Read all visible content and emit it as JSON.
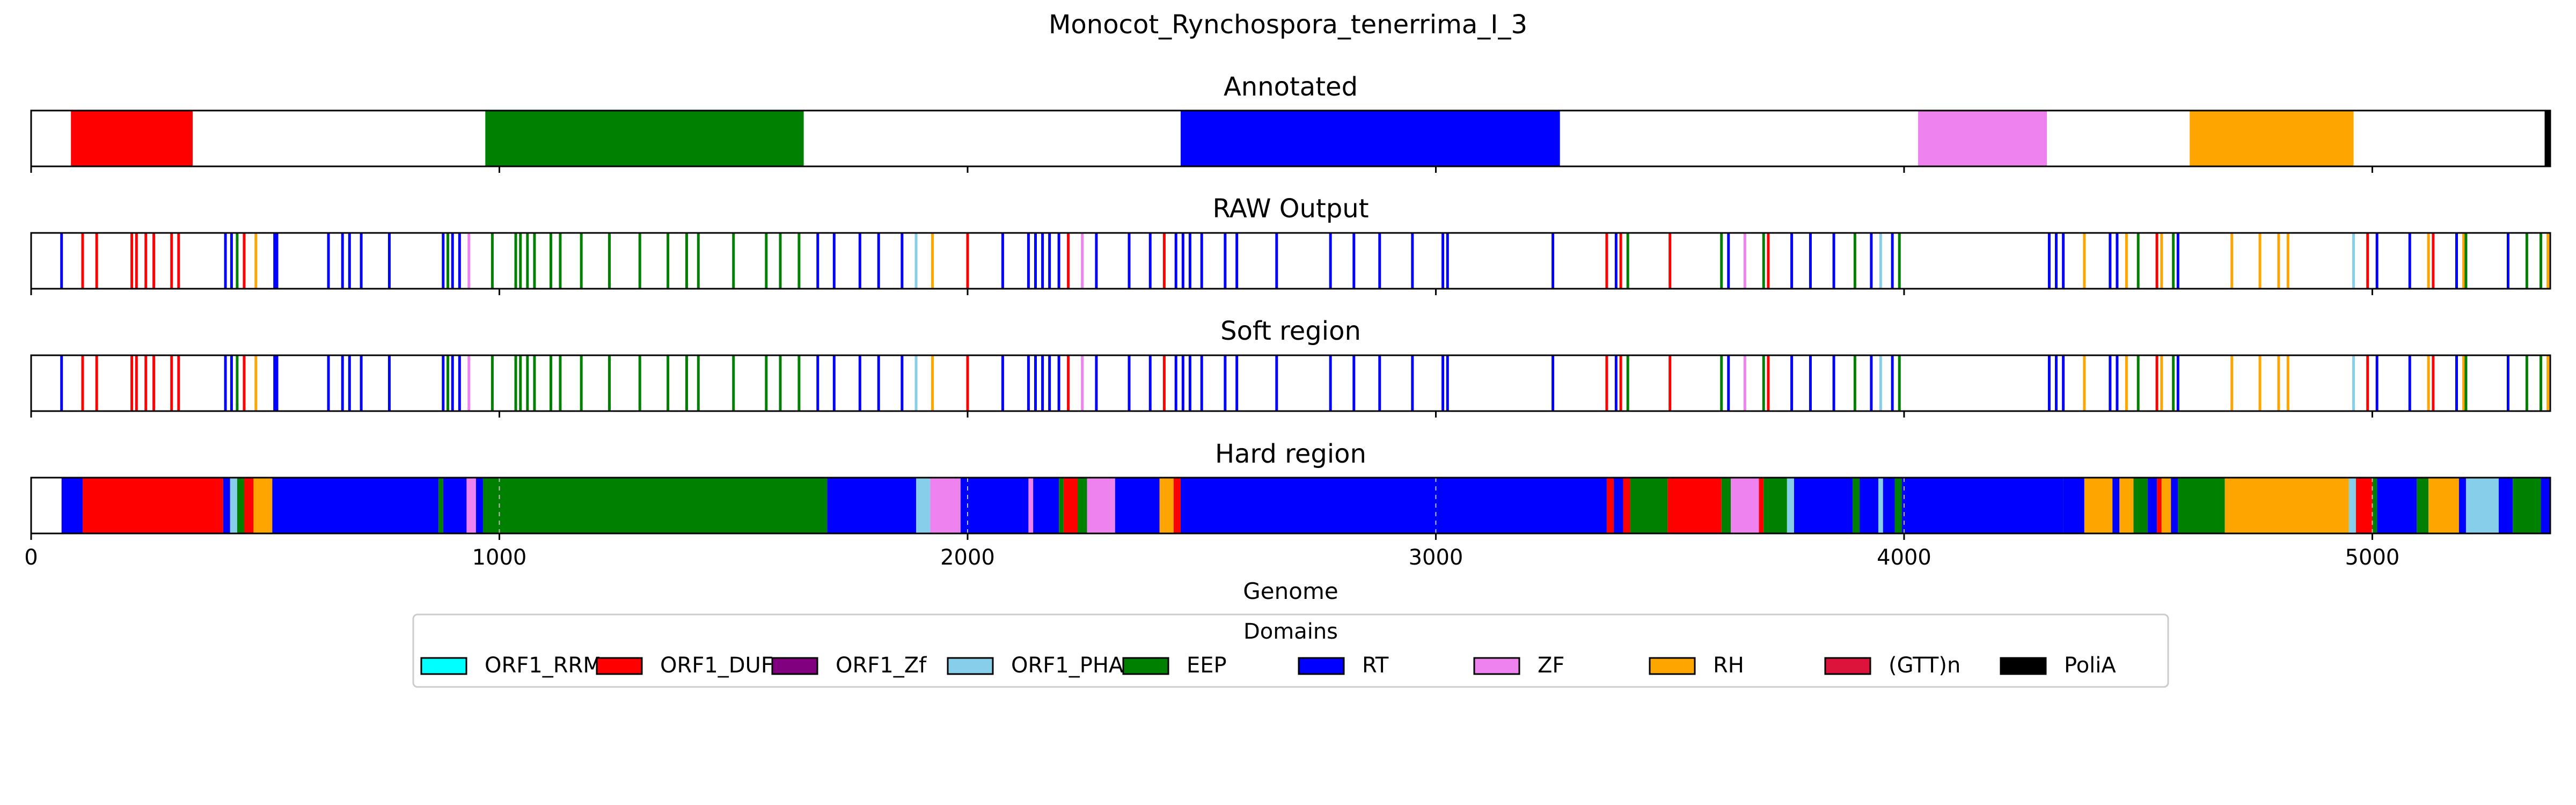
{
  "chart_data": {
    "type": "genome-track",
    "title": "Monocot_Rynchospora_tenerrima_I_3",
    "xlabel": "Genome",
    "xlim": [
      0,
      5380
    ],
    "xticks": [
      0,
      1000,
      2000,
      3000,
      4000,
      5000
    ],
    "xtick_labels": [
      "0",
      "1000",
      "2000",
      "3000",
      "4000",
      "5000"
    ],
    "colors": {
      "ORF1_RRM": "#00ffff",
      "ORF1_DUF": "#ff0000",
      "ORF1_Zf": "#800080",
      "ORF1_PHA": "#87ceeb",
      "EEP": "#008000",
      "RT": "#0000ff",
      "ZF": "#ee82ee",
      "RH": "#ffa500",
      "(GTT)n": "#dc143c",
      "PoliA": "#000000"
    },
    "legend": {
      "title": "Domains",
      "placement": "bottom-center",
      "entries": [
        "ORF1_RRM",
        "ORF1_DUF",
        "ORF1_Zf",
        "ORF1_PHA",
        "EEP",
        "RT",
        "ZF",
        "RH",
        "(GTT)n",
        "PoliA"
      ]
    },
    "panels": [
      {
        "name": "annotated",
        "title": "Annotated",
        "segments": [
          {
            "start": 85,
            "end": 345,
            "domain": "ORF1_DUF"
          },
          {
            "start": 970,
            "end": 1650,
            "domain": "EEP"
          },
          {
            "start": 2455,
            "end": 3265,
            "domain": "RT"
          },
          {
            "start": 4030,
            "end": 4305,
            "domain": "ZF"
          },
          {
            "start": 4610,
            "end": 4960,
            "domain": "RH"
          },
          {
            "start": 5368,
            "end": 5380,
            "domain": "PoliA"
          }
        ]
      },
      {
        "name": "raw-output",
        "title": "RAW Output",
        "lines": [
          {
            "pos": 65,
            "domain": "RT"
          },
          {
            "pos": 110,
            "domain": "ORF1_DUF"
          },
          {
            "pos": 140,
            "domain": "ORF1_DUF"
          },
          {
            "pos": 215,
            "domain": "ORF1_DUF"
          },
          {
            "pos": 225,
            "domain": "ORF1_DUF"
          },
          {
            "pos": 245,
            "domain": "ORF1_DUF"
          },
          {
            "pos": 262,
            "domain": "ORF1_DUF"
          },
          {
            "pos": 300,
            "domain": "ORF1_DUF"
          },
          {
            "pos": 315,
            "domain": "ORF1_DUF"
          },
          {
            "pos": 415,
            "domain": "RT"
          },
          {
            "pos": 428,
            "domain": "RT"
          },
          {
            "pos": 440,
            "domain": "EEP"
          },
          {
            "pos": 455,
            "domain": "ORF1_DUF"
          },
          {
            "pos": 480,
            "domain": "RH"
          },
          {
            "pos": 520,
            "domain": "RT"
          },
          {
            "pos": 525,
            "domain": "RT"
          },
          {
            "pos": 635,
            "domain": "RT"
          },
          {
            "pos": 665,
            "domain": "RT"
          },
          {
            "pos": 680,
            "domain": "RT"
          },
          {
            "pos": 705,
            "domain": "RT"
          },
          {
            "pos": 765,
            "domain": "RT"
          },
          {
            "pos": 880,
            "domain": "RT"
          },
          {
            "pos": 890,
            "domain": "EEP"
          },
          {
            "pos": 900,
            "domain": "RT"
          },
          {
            "pos": 915,
            "domain": "RT"
          },
          {
            "pos": 935,
            "domain": "ZF"
          },
          {
            "pos": 985,
            "domain": "EEP"
          },
          {
            "pos": 1035,
            "domain": "EEP"
          },
          {
            "pos": 1045,
            "domain": "EEP"
          },
          {
            "pos": 1060,
            "domain": "EEP"
          },
          {
            "pos": 1075,
            "domain": "EEP"
          },
          {
            "pos": 1110,
            "domain": "EEP"
          },
          {
            "pos": 1130,
            "domain": "EEP"
          },
          {
            "pos": 1175,
            "domain": "EEP"
          },
          {
            "pos": 1235,
            "domain": "EEP"
          },
          {
            "pos": 1300,
            "domain": "EEP"
          },
          {
            "pos": 1360,
            "domain": "EEP"
          },
          {
            "pos": 1400,
            "domain": "EEP"
          },
          {
            "pos": 1425,
            "domain": "EEP"
          },
          {
            "pos": 1500,
            "domain": "EEP"
          },
          {
            "pos": 1570,
            "domain": "EEP"
          },
          {
            "pos": 1600,
            "domain": "EEP"
          },
          {
            "pos": 1640,
            "domain": "EEP"
          },
          {
            "pos": 1680,
            "domain": "RT"
          },
          {
            "pos": 1715,
            "domain": "RT"
          },
          {
            "pos": 1770,
            "domain": "RT"
          },
          {
            "pos": 1810,
            "domain": "RT"
          },
          {
            "pos": 1860,
            "domain": "RT"
          },
          {
            "pos": 1890,
            "domain": "ORF1_PHA"
          },
          {
            "pos": 1925,
            "domain": "RH"
          },
          {
            "pos": 2000,
            "domain": "ORF1_DUF"
          },
          {
            "pos": 2075,
            "domain": "RT"
          },
          {
            "pos": 2130,
            "domain": "RT"
          },
          {
            "pos": 2145,
            "domain": "RT"
          },
          {
            "pos": 2160,
            "domain": "RT"
          },
          {
            "pos": 2175,
            "domain": "RT"
          },
          {
            "pos": 2195,
            "domain": "RT"
          },
          {
            "pos": 2215,
            "domain": "ORF1_DUF"
          },
          {
            "pos": 2245,
            "domain": "ZF"
          },
          {
            "pos": 2275,
            "domain": "RT"
          },
          {
            "pos": 2345,
            "domain": "RT"
          },
          {
            "pos": 2390,
            "domain": "RT"
          },
          {
            "pos": 2420,
            "domain": "ORF1_DUF"
          },
          {
            "pos": 2445,
            "domain": "RT"
          },
          {
            "pos": 2460,
            "domain": "RT"
          },
          {
            "pos": 2475,
            "domain": "RT"
          },
          {
            "pos": 2500,
            "domain": "RT"
          },
          {
            "pos": 2550,
            "domain": "RT"
          },
          {
            "pos": 2575,
            "domain": "RT"
          },
          {
            "pos": 2660,
            "domain": "RT"
          },
          {
            "pos": 2775,
            "domain": "RT"
          },
          {
            "pos": 2825,
            "domain": "RT"
          },
          {
            "pos": 2880,
            "domain": "RT"
          },
          {
            "pos": 2950,
            "domain": "RT"
          },
          {
            "pos": 3015,
            "domain": "RT"
          },
          {
            "pos": 3025,
            "domain": "RT"
          },
          {
            "pos": 3250,
            "domain": "RT"
          },
          {
            "pos": 3365,
            "domain": "ORF1_DUF"
          },
          {
            "pos": 3385,
            "domain": "RT"
          },
          {
            "pos": 3395,
            "domain": "ORF1_DUF"
          },
          {
            "pos": 3410,
            "domain": "EEP"
          },
          {
            "pos": 3500,
            "domain": "ORF1_DUF"
          },
          {
            "pos": 3610,
            "domain": "EEP"
          },
          {
            "pos": 3625,
            "domain": "RT"
          },
          {
            "pos": 3660,
            "domain": "ZF"
          },
          {
            "pos": 3700,
            "domain": "EEP"
          },
          {
            "pos": 3710,
            "domain": "ORF1_DUF"
          },
          {
            "pos": 3760,
            "domain": "RT"
          },
          {
            "pos": 3800,
            "domain": "RT"
          },
          {
            "pos": 3850,
            "domain": "RT"
          },
          {
            "pos": 3895,
            "domain": "EEP"
          },
          {
            "pos": 3930,
            "domain": "RT"
          },
          {
            "pos": 3950,
            "domain": "ORF1_PHA"
          },
          {
            "pos": 3975,
            "domain": "RT"
          },
          {
            "pos": 3990,
            "domain": "EEP"
          },
          {
            "pos": 4310,
            "domain": "RT"
          },
          {
            "pos": 4325,
            "domain": "RT"
          },
          {
            "pos": 4340,
            "domain": "RT"
          },
          {
            "pos": 4385,
            "domain": "RH"
          },
          {
            "pos": 4440,
            "domain": "RT"
          },
          {
            "pos": 4455,
            "domain": "RT"
          },
          {
            "pos": 4475,
            "domain": "RH"
          },
          {
            "pos": 4500,
            "domain": "EEP"
          },
          {
            "pos": 4540,
            "domain": "ORF1_DUF"
          },
          {
            "pos": 4550,
            "domain": "RH"
          },
          {
            "pos": 4575,
            "domain": "EEP"
          },
          {
            "pos": 4585,
            "domain": "RT"
          },
          {
            "pos": 4700,
            "domain": "RH"
          },
          {
            "pos": 4760,
            "domain": "RH"
          },
          {
            "pos": 4800,
            "domain": "RH"
          },
          {
            "pos": 4820,
            "domain": "RH"
          },
          {
            "pos": 4960,
            "domain": "ORF1_PHA"
          },
          {
            "pos": 4990,
            "domain": "ORF1_DUF"
          },
          {
            "pos": 5010,
            "domain": "RT"
          },
          {
            "pos": 5080,
            "domain": "RT"
          },
          {
            "pos": 5120,
            "domain": "RH"
          },
          {
            "pos": 5130,
            "domain": "ORF1_DUF"
          },
          {
            "pos": 5180,
            "domain": "RT"
          },
          {
            "pos": 5195,
            "domain": "RH"
          },
          {
            "pos": 5200,
            "domain": "EEP"
          },
          {
            "pos": 5290,
            "domain": "RT"
          },
          {
            "pos": 5330,
            "domain": "EEP"
          },
          {
            "pos": 5360,
            "domain": "EEP"
          },
          {
            "pos": 5375,
            "domain": "RH"
          }
        ]
      },
      {
        "name": "soft-region",
        "title": "Soft region",
        "same_as": "raw-output"
      },
      {
        "name": "hard-region",
        "title": "Hard region",
        "segments": [
          {
            "start": 65,
            "end": 110,
            "domain": "RT"
          },
          {
            "start": 110,
            "end": 410,
            "domain": "ORF1_DUF"
          },
          {
            "start": 410,
            "end": 425,
            "domain": "RT"
          },
          {
            "start": 425,
            "end": 440,
            "domain": "ORF1_PHA"
          },
          {
            "start": 440,
            "end": 455,
            "domain": "EEP"
          },
          {
            "start": 455,
            "end": 475,
            "domain": "ORF1_DUF"
          },
          {
            "start": 475,
            "end": 515,
            "domain": "RH"
          },
          {
            "start": 515,
            "end": 870,
            "domain": "RT"
          },
          {
            "start": 870,
            "end": 880,
            "domain": "EEP"
          },
          {
            "start": 880,
            "end": 930,
            "domain": "RT"
          },
          {
            "start": 930,
            "end": 950,
            "domain": "ZF"
          },
          {
            "start": 950,
            "end": 965,
            "domain": "RT"
          },
          {
            "start": 965,
            "end": 1700,
            "domain": "EEP"
          },
          {
            "start": 1700,
            "end": 1890,
            "domain": "RT"
          },
          {
            "start": 1890,
            "end": 1920,
            "domain": "ORF1_PHA"
          },
          {
            "start": 1920,
            "end": 1985,
            "domain": "ZF"
          },
          {
            "start": 1985,
            "end": 2130,
            "domain": "RT"
          },
          {
            "start": 2130,
            "end": 2140,
            "domain": "ZF"
          },
          {
            "start": 2140,
            "end": 2195,
            "domain": "RT"
          },
          {
            "start": 2195,
            "end": 2205,
            "domain": "EEP"
          },
          {
            "start": 2205,
            "end": 2235,
            "domain": "ORF1_DUF"
          },
          {
            "start": 2235,
            "end": 2255,
            "domain": "EEP"
          },
          {
            "start": 2255,
            "end": 2315,
            "domain": "ZF"
          },
          {
            "start": 2315,
            "end": 2410,
            "domain": "RT"
          },
          {
            "start": 2410,
            "end": 2440,
            "domain": "RH"
          },
          {
            "start": 2440,
            "end": 2455,
            "domain": "ORF1_DUF"
          },
          {
            "start": 2455,
            "end": 3365,
            "domain": "RT"
          },
          {
            "start": 3365,
            "end": 3380,
            "domain": "ORF1_DUF"
          },
          {
            "start": 3380,
            "end": 3400,
            "domain": "RT"
          },
          {
            "start": 3400,
            "end": 3415,
            "domain": "ORF1_DUF"
          },
          {
            "start": 3415,
            "end": 3495,
            "domain": "EEP"
          },
          {
            "start": 3495,
            "end": 3610,
            "domain": "ORF1_DUF"
          },
          {
            "start": 3610,
            "end": 3630,
            "domain": "EEP"
          },
          {
            "start": 3630,
            "end": 3690,
            "domain": "ZF"
          },
          {
            "start": 3690,
            "end": 3700,
            "domain": "ORF1_DUF"
          },
          {
            "start": 3700,
            "end": 3750,
            "domain": "EEP"
          },
          {
            "start": 3750,
            "end": 3765,
            "domain": "ORF1_PHA"
          },
          {
            "start": 3765,
            "end": 3890,
            "domain": "RT"
          },
          {
            "start": 3890,
            "end": 3905,
            "domain": "EEP"
          },
          {
            "start": 3905,
            "end": 3945,
            "domain": "RT"
          },
          {
            "start": 3945,
            "end": 3955,
            "domain": "ORF1_PHA"
          },
          {
            "start": 3955,
            "end": 3980,
            "domain": "RT"
          },
          {
            "start": 3980,
            "end": 3995,
            "domain": "EEP"
          },
          {
            "start": 3995,
            "end": 4340,
            "domain": "RT"
          },
          {
            "start": 4340,
            "end": 4385,
            "domain": "RT"
          },
          {
            "start": 4385,
            "end": 4445,
            "domain": "RH"
          },
          {
            "start": 4445,
            "end": 4460,
            "domain": "RT"
          },
          {
            "start": 4460,
            "end": 4490,
            "domain": "RH"
          },
          {
            "start": 4490,
            "end": 4520,
            "domain": "EEP"
          },
          {
            "start": 4520,
            "end": 4540,
            "domain": "RT"
          },
          {
            "start": 4540,
            "end": 4550,
            "domain": "ORF1_DUF"
          },
          {
            "start": 4550,
            "end": 4570,
            "domain": "RH"
          },
          {
            "start": 4570,
            "end": 4585,
            "domain": "RT"
          },
          {
            "start": 4585,
            "end": 4685,
            "domain": "EEP"
          },
          {
            "start": 4685,
            "end": 4950,
            "domain": "RH"
          },
          {
            "start": 4950,
            "end": 4965,
            "domain": "ORF1_PHA"
          },
          {
            "start": 4965,
            "end": 5000,
            "domain": "ORF1_DUF"
          },
          {
            "start": 5000,
            "end": 5010,
            "domain": "EEP"
          },
          {
            "start": 5010,
            "end": 5095,
            "domain": "RT"
          },
          {
            "start": 5095,
            "end": 5120,
            "domain": "EEP"
          },
          {
            "start": 5120,
            "end": 5185,
            "domain": "RH"
          },
          {
            "start": 5185,
            "end": 5200,
            "domain": "RT"
          },
          {
            "start": 5200,
            "end": 5270,
            "domain": "ORF1_PHA"
          },
          {
            "start": 5270,
            "end": 5300,
            "domain": "RT"
          },
          {
            "start": 5300,
            "end": 5360,
            "domain": "EEP"
          },
          {
            "start": 5360,
            "end": 5380,
            "domain": "RT"
          }
        ],
        "dashed_lines": [
          1000,
          2000,
          3000,
          4000,
          5000
        ]
      }
    ]
  }
}
